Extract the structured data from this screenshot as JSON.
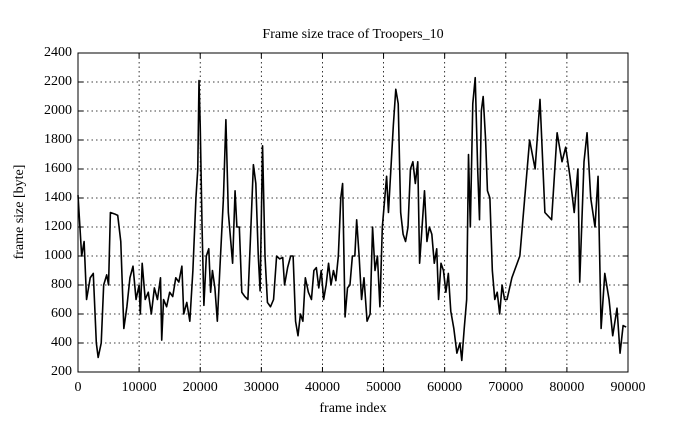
{
  "chart_data": {
    "type": "line",
    "title": "Frame size trace of Troopers_10",
    "xlabel": "frame index",
    "ylabel": "frame size [byte]",
    "xlim": [
      0,
      90000
    ],
    "ylim": [
      200,
      2400
    ],
    "xticks": [
      0,
      10000,
      20000,
      30000,
      40000,
      50000,
      60000,
      70000,
      80000,
      90000
    ],
    "yticks": [
      200,
      400,
      600,
      800,
      1000,
      1200,
      1400,
      1600,
      1800,
      2000,
      2200,
      2400
    ],
    "grid": true,
    "series": [
      {
        "color": "#000000",
        "x": [
          0,
          600,
          1000,
          1400,
          2000,
          2500,
          3000,
          3300,
          3800,
          4200,
          4700,
          5000,
          5300,
          6000,
          6500,
          7000,
          7500,
          8000,
          8500,
          9000,
          9500,
          10000,
          10200,
          10500,
          11000,
          11500,
          12000,
          12500,
          13000,
          13500,
          13700,
          14000,
          14500,
          15000,
          15500,
          16000,
          16500,
          17000,
          17300,
          17800,
          18300,
          18800,
          19300,
          19600,
          19800,
          20000,
          20300,
          20600,
          21000,
          21400,
          21700,
          22000,
          22400,
          22800,
          23200,
          23800,
          24200,
          24600,
          25000,
          25300,
          25700,
          26000,
          26400,
          26800,
          27300,
          27800,
          28200,
          28700,
          29100,
          29500,
          29800,
          30200,
          30600,
          31000,
          31500,
          32000,
          32500,
          33000,
          33500,
          33800,
          34300,
          34800,
          35200,
          35600,
          36000,
          36400,
          36800,
          37200,
          37700,
          38200,
          38600,
          39000,
          39400,
          39800,
          40200,
          40600,
          41000,
          41400,
          41800,
          42200,
          42600,
          43000,
          43300,
          43700,
          44100,
          44500,
          44900,
          45300,
          45600,
          46000,
          46400,
          46800,
          47300,
          47800,
          48200,
          48600,
          49000,
          49400,
          49800,
          50200,
          50500,
          50800,
          51200,
          51600,
          52000,
          52400,
          52800,
          53200,
          53600,
          54000,
          54400,
          54800,
          55200,
          55600,
          55900,
          56300,
          56700,
          57100,
          57500,
          57900,
          58300,
          58700,
          59000,
          59400,
          59800,
          60200,
          60600,
          61000,
          61500,
          62000,
          62500,
          62800,
          63200,
          63600,
          63900,
          64200,
          64600,
          65000,
          65400,
          65700,
          66000,
          66300,
          66700,
          67000,
          67400,
          67800,
          68200,
          68600,
          69000,
          69400,
          69800,
          70200,
          71000,
          72300,
          73900,
          74800,
          75600,
          76400,
          77500,
          78400,
          79200,
          79800,
          80500,
          81200,
          81800,
          82100,
          82800,
          83300,
          83900,
          84600,
          85100,
          85600,
          86200,
          86900,
          87500,
          88200,
          88700,
          89200,
          89700
        ],
        "values": [
          1420,
          1000,
          1100,
          700,
          850,
          880,
          400,
          300,
          400,
          800,
          870,
          800,
          1300,
          1290,
          1280,
          1100,
          500,
          650,
          850,
          930,
          700,
          800,
          600,
          950,
          700,
          750,
          600,
          780,
          700,
          850,
          420,
          700,
          650,
          750,
          720,
          850,
          820,
          930,
          600,
          680,
          550,
          900,
          1400,
          1600,
          2210,
          1900,
          1200,
          660,
          1000,
          1050,
          750,
          900,
          780,
          550,
          900,
          1400,
          1940,
          1300,
          1100,
          950,
          1450,
          1200,
          1200,
          750,
          720,
          700,
          1100,
          1630,
          1500,
          1000,
          760,
          1760,
          1000,
          680,
          650,
          700,
          1000,
          980,
          990,
          800,
          920,
          1000,
          1000,
          550,
          450,
          600,
          550,
          850,
          750,
          700,
          900,
          920,
          780,
          900,
          700,
          800,
          950,
          800,
          900,
          830,
          1000,
          1400,
          1500,
          580,
          780,
          800,
          1000,
          1000,
          1250,
          1000,
          700,
          850,
          550,
          600,
          1200,
          900,
          1000,
          650,
          1200,
          1400,
          1550,
          1300,
          1600,
          1900,
          2150,
          2050,
          1300,
          1150,
          1100,
          1200,
          1600,
          1650,
          1500,
          1650,
          950,
          1200,
          1450,
          1100,
          1200,
          1150,
          950,
          1050,
          700,
          950,
          900,
          750,
          880,
          620,
          500,
          330,
          400,
          280,
          500,
          700,
          1700,
          1200,
          2050,
          2230,
          1600,
          1250,
          2000,
          2100,
          1800,
          1450,
          1400,
          900,
          700,
          750,
          600,
          800,
          700,
          700,
          850,
          1000,
          1800,
          1600,
          2080,
          1300,
          1250,
          1850,
          1650,
          1750,
          1550,
          1300,
          1600,
          820,
          1650,
          1850,
          1400,
          1200,
          1550,
          500,
          880,
          700,
          450,
          640,
          330,
          520,
          510
        ]
      }
    ]
  }
}
